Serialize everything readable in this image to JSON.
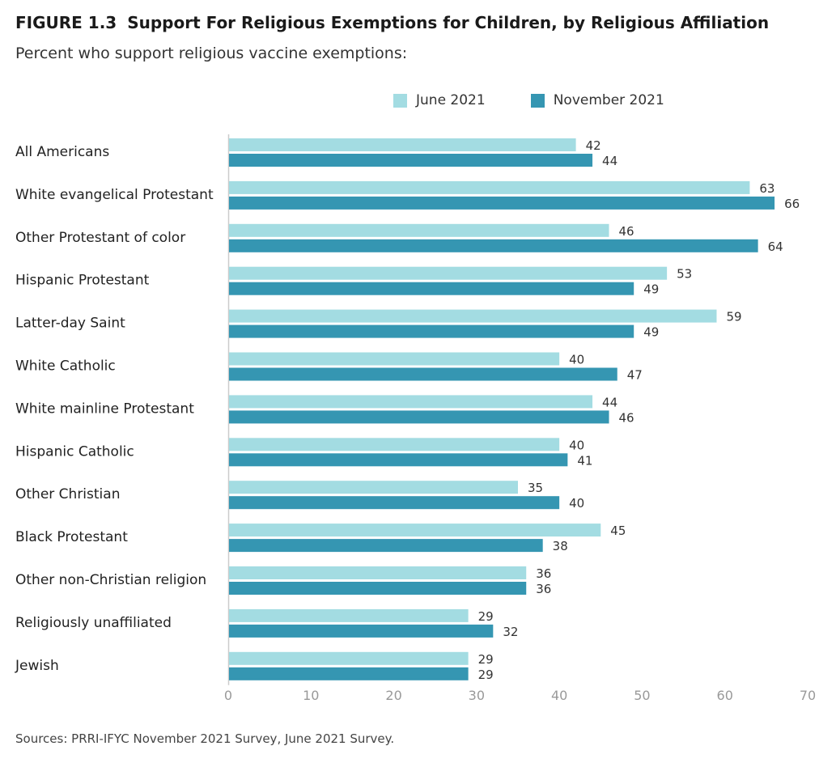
{
  "header": {
    "figure_label": "FIGURE 1.3",
    "title": "Support For Religious Exemptions for Children, by Religious Affiliation",
    "subtitle": "Percent who support religious vaccine exemptions:"
  },
  "source": "Sources: PRRI-IFYC November 2021 Survey, June 2021 Survey.",
  "colors": {
    "june": "#a3dce2",
    "november": "#3596b2",
    "axis": "#cccccc",
    "tick_text": "#999999",
    "label_text": "#222222"
  },
  "chart_data": {
    "type": "bar",
    "orientation": "horizontal",
    "title": "Support For Religious Exemptions for Children, by Religious Affiliation",
    "subtitle": "Percent who support religious vaccine exemptions:",
    "legend_position": "top-right",
    "grid": false,
    "xlim": [
      0,
      70
    ],
    "xticks": [
      "0",
      "10",
      "20",
      "30",
      "40",
      "50",
      "60",
      "70"
    ],
    "categories": [
      "All Americans",
      "White evangelical Protestant",
      "Other Protestant of color",
      "Hispanic Protestant",
      "Latter-day Saint",
      "White Catholic",
      "White mainline Protestant",
      "Hispanic Catholic",
      "Other Christian",
      "Black Protestant",
      "Other non-Christian religion",
      "Religiously unaffiliated",
      "Jewish"
    ],
    "series": [
      {
        "name": "June 2021",
        "color": "#a3dce2",
        "values": [
          42,
          63,
          46,
          53,
          59,
          40,
          44,
          40,
          35,
          45,
          36,
          29,
          29
        ]
      },
      {
        "name": "November 2021",
        "color": "#3596b2",
        "values": [
          44,
          66,
          64,
          49,
          49,
          47,
          46,
          41,
          40,
          38,
          36,
          32,
          29
        ]
      }
    ]
  }
}
